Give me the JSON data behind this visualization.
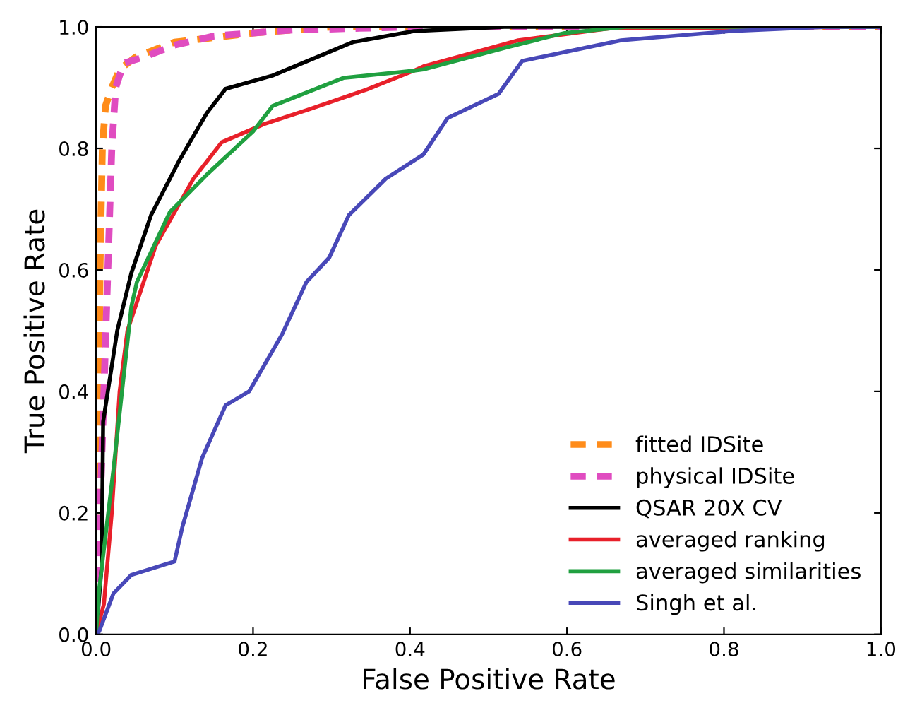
{
  "chart_data": {
    "type": "line",
    "xlabel": "False Positive Rate",
    "ylabel": "True Positive Rate",
    "xlim": [
      0,
      1
    ],
    "ylim": [
      0,
      1
    ],
    "xticks": [
      {
        "value": 0,
        "label": "0.0"
      },
      0.2,
      0.4,
      0.6,
      0.8,
      {
        "value": 1,
        "label": "1.0"
      }
    ],
    "yticks": [
      {
        "value": 0,
        "label": "0.0"
      },
      0.2,
      0.4,
      0.6,
      0.8,
      {
        "value": 1,
        "label": "1.0"
      }
    ],
    "grid": false,
    "legend": "bottom right",
    "marker": "none",
    "series": [
      {
        "name": "fitted IDSite",
        "color": "#ff8c1a",
        "line_style": "dashed",
        "x": [
          0,
          0.003,
          0.005,
          0.008,
          0.012,
          0.02,
          0.03,
          0.05,
          0.1,
          0.2,
          0.3,
          1
        ],
        "values": [
          0,
          0.3,
          0.6,
          0.8,
          0.87,
          0.9,
          0.93,
          0.95,
          0.975,
          0.99,
          1.0,
          1.0
        ]
      },
      {
        "name": "physical IDSite",
        "color": "#e04cc0",
        "line_style": "dashed",
        "x": [
          0,
          0.005,
          0.01,
          0.015,
          0.02,
          0.025,
          0.035,
          0.06,
          0.1,
          0.15,
          0.25,
          0.4,
          1
        ],
        "values": [
          0,
          0.2,
          0.4,
          0.6,
          0.8,
          0.9,
          0.94,
          0.95,
          0.97,
          0.985,
          0.995,
          1.0,
          1.0
        ]
      },
      {
        "name": "QSAR 20X CV",
        "color": "#000000",
        "line_style": "solid",
        "x": [
          0,
          0.007,
          0.009,
          0.027,
          0.045,
          0.07,
          0.106,
          0.141,
          0.165,
          0.225,
          0.327,
          0.405,
          0.52,
          1
        ],
        "values": [
          0,
          0.11,
          0.35,
          0.5,
          0.595,
          0.69,
          0.78,
          0.858,
          0.898,
          0.92,
          0.975,
          0.993,
          1.0,
          1.0
        ]
      },
      {
        "name": "averaged ranking",
        "color": "#e8202a",
        "line_style": "solid",
        "x": [
          0,
          0.01,
          0.02,
          0.03,
          0.04,
          0.076,
          0.124,
          0.16,
          0.214,
          0.273,
          0.345,
          0.405,
          0.417,
          0.538,
          0.657,
          1
        ],
        "values": [
          0,
          0.05,
          0.2,
          0.4,
          0.5,
          0.64,
          0.75,
          0.81,
          0.84,
          0.865,
          0.897,
          0.928,
          0.935,
          0.978,
          0.998,
          1.0
        ]
      },
      {
        "name": "averaged similarities",
        "color": "#20a040",
        "line_style": "solid",
        "x": [
          0,
          0.004,
          0.022,
          0.045,
          0.052,
          0.094,
          0.142,
          0.2,
          0.225,
          0.315,
          0.405,
          0.417,
          0.525,
          0.597,
          0.675,
          1
        ],
        "values": [
          0,
          0.075,
          0.27,
          0.54,
          0.58,
          0.695,
          0.758,
          0.828,
          0.87,
          0.916,
          0.928,
          0.93,
          0.967,
          0.99,
          1.0,
          1.0
        ]
      },
      {
        "name": "Singh et al.",
        "color": "#4848b8",
        "line_style": "solid",
        "x": [
          0,
          0.004,
          0.022,
          0.045,
          0.1,
          0.11,
          0.135,
          0.165,
          0.195,
          0.237,
          0.268,
          0.297,
          0.322,
          0.369,
          0.417,
          0.448,
          0.513,
          0.543,
          0.669,
          0.808,
          0.93,
          1
        ],
        "values": [
          0,
          0.005,
          0.067,
          0.098,
          0.12,
          0.177,
          0.29,
          0.377,
          0.4,
          0.494,
          0.58,
          0.62,
          0.69,
          0.75,
          0.79,
          0.85,
          0.89,
          0.944,
          0.978,
          0.993,
          1.0,
          1.0
        ]
      }
    ]
  }
}
